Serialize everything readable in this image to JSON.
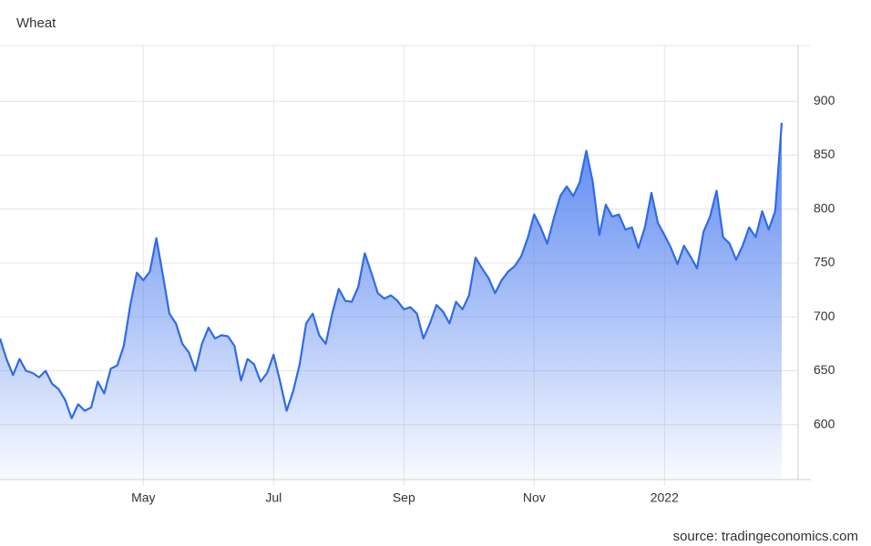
{
  "chart_data": {
    "type": "area",
    "title": "Wheat",
    "source": "source: tradingeconomics.com",
    "color": "#2f6be6",
    "categories": [
      null,
      null,
      null,
      null,
      null,
      null,
      null,
      null,
      null,
      null,
      null,
      null,
      null,
      null,
      null,
      null,
      null,
      null,
      null,
      null,
      null,
      null,
      "May",
      null,
      null,
      null,
      null,
      null,
      null,
      null,
      null,
      null,
      null,
      null,
      null,
      null,
      null,
      null,
      null,
      null,
      null,
      null,
      "Jul",
      null,
      null,
      null,
      null,
      null,
      null,
      null,
      null,
      null,
      null,
      null,
      null,
      null,
      null,
      null,
      null,
      null,
      null,
      null,
      "Sep",
      null,
      null,
      null,
      null,
      null,
      null,
      null,
      null,
      null,
      null,
      null,
      null,
      null,
      null,
      null,
      null,
      null,
      null,
      null,
      "Nov",
      null,
      null,
      null,
      null,
      null,
      null,
      null,
      null,
      null,
      null,
      null,
      null,
      null,
      null,
      null,
      null,
      null,
      null,
      null,
      "2022",
      null,
      null,
      null,
      null,
      null,
      null,
      null,
      null,
      null,
      null,
      null,
      null,
      null,
      null,
      null,
      null,
      null,
      null
    ],
    "values": [
      680,
      661,
      646,
      661,
      650,
      648,
      644,
      650,
      638,
      633,
      623,
      606,
      619,
      613,
      616,
      640,
      629,
      652,
      655,
      673,
      711,
      741,
      734,
      742,
      773,
      739,
      703,
      694,
      675,
      667,
      650,
      675,
      690,
      680,
      683,
      682,
      673,
      641,
      661,
      656,
      640,
      648,
      665,
      640,
      613,
      631,
      656,
      694,
      703,
      683,
      675,
      703,
      726,
      715,
      714,
      728,
      759,
      741,
      722,
      717,
      720,
      715,
      707,
      709,
      703,
      680,
      694,
      711,
      705,
      694,
      714,
      707,
      720,
      755,
      745,
      736,
      722,
      734,
      742,
      747,
      756,
      773,
      795,
      783,
      768,
      791,
      812,
      821,
      812,
      825,
      854,
      825,
      776,
      804,
      793,
      795,
      781,
      783,
      764,
      783,
      815,
      787,
      776,
      764,
      749,
      766,
      756,
      745,
      779,
      793,
      817,
      774,
      768,
      753,
      766,
      783,
      774,
      798,
      781,
      798,
      880
    ],
    "ylim": [
      550,
      950
    ],
    "yticks": [
      600,
      650,
      700,
      750,
      800,
      850,
      900
    ],
    "grid": true
  }
}
